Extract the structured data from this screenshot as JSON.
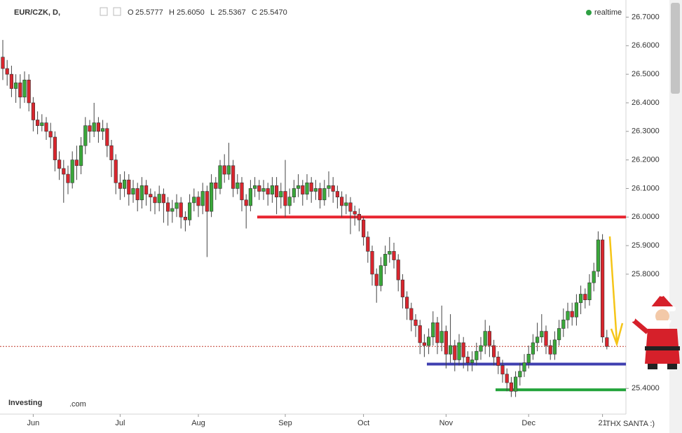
{
  "chart_data": {
    "type": "candlestick",
    "symbol": "EUR/CZK, D,",
    "ohlc_header": [
      {
        "label": "O",
        "value": "25.5777"
      },
      {
        "label": "H",
        "value": "25.6050"
      },
      {
        "label": "L",
        "value": "25.5367"
      },
      {
        "label": "C",
        "value": "25.5470"
      }
    ],
    "status": "realtime",
    "brand": "Investing",
    "brand_suffix": ".com",
    "annotation": "THX SANTA :)",
    "categories": [
      null,
      null,
      null,
      null,
      null,
      null,
      null,
      "Jun",
      null,
      null,
      null,
      null,
      null,
      null,
      null,
      null,
      null,
      null,
      null,
      null,
      null,
      null,
      null,
      null,
      null,
      null,
      null,
      "Jul",
      null,
      null,
      null,
      null,
      null,
      null,
      null,
      null,
      null,
      null,
      null,
      null,
      null,
      null,
      null,
      null,
      null,
      "Aug",
      null,
      null,
      null,
      null,
      null,
      null,
      null,
      null,
      null,
      null,
      null,
      null,
      null,
      null,
      null,
      null,
      null,
      null,
      null,
      "Sep",
      null,
      null,
      null,
      null,
      null,
      null,
      null,
      null,
      null,
      null,
      null,
      null,
      null,
      null,
      null,
      null,
      null,
      "Oct",
      null,
      null,
      null,
      null,
      null,
      null,
      null,
      null,
      null,
      null,
      null,
      null,
      null,
      null,
      null,
      null,
      null,
      null,
      "Nov",
      null,
      null,
      null,
      null,
      null,
      null,
      null,
      null,
      null,
      null,
      null,
      null,
      null,
      null,
      null,
      null,
      null,
      null,
      "Dec",
      null,
      null,
      null,
      null,
      null,
      null,
      null,
      null,
      null,
      null,
      null,
      null,
      null,
      null,
      null,
      null,
      "21",
      null
    ],
    "open": [
      26.56,
      26.52,
      26.5,
      26.45,
      26.47,
      26.42,
      26.48,
      26.4,
      26.34,
      26.32,
      26.33,
      26.3,
      26.28,
      26.2,
      26.17,
      26.15,
      26.12,
      26.2,
      26.18,
      26.25,
      26.32,
      26.3,
      26.33,
      26.3,
      26.31,
      26.25,
      26.2,
      26.12,
      26.1,
      26.13,
      26.08,
      26.1,
      26.06,
      26.11,
      26.08,
      26.07,
      26.05,
      26.08,
      26.05,
      26.02,
      26.03,
      26.05,
      26.0,
      25.99,
      26.05,
      26.07,
      26.04,
      26.09,
      26.02,
      26.12,
      26.1,
      26.18,
      26.15,
      26.18,
      26.1,
      26.12,
      26.06,
      26.04,
      26.1,
      26.11,
      26.09,
      26.1,
      26.08,
      26.11,
      26.07,
      26.09,
      26.04,
      26.07,
      26.1,
      26.11,
      26.08,
      26.12,
      26.09,
      26.1,
      26.06,
      26.1,
      26.11,
      26.09,
      26.07,
      26.04,
      26.05,
      26.02,
      26.01,
      25.99,
      25.93,
      25.88,
      25.8,
      25.76,
      25.83,
      25.87,
      25.88,
      25.85,
      25.78,
      25.72,
      25.68,
      25.64,
      25.62,
      25.56,
      25.55,
      25.58,
      25.63,
      25.56,
      25.6,
      25.52,
      25.55,
      25.5,
      25.56,
      25.51,
      25.49,
      25.5,
      25.53,
      25.55,
      25.6,
      25.55,
      25.51,
      25.48,
      25.45,
      25.42,
      25.39,
      25.44,
      25.46,
      25.49,
      25.52,
      25.56,
      25.58,
      25.6,
      25.55,
      25.52,
      25.57,
      25.61,
      25.64,
      25.67,
      25.65,
      25.7,
      25.73,
      25.71,
      25.77,
      25.81,
      25.92,
      25.5777
    ],
    "high": [
      26.62,
      26.55,
      26.53,
      26.5,
      26.5,
      26.51,
      26.5,
      26.42,
      26.37,
      26.36,
      26.35,
      26.33,
      26.3,
      26.23,
      26.2,
      26.18,
      26.23,
      26.25,
      26.28,
      26.35,
      26.34,
      26.4,
      26.35,
      26.34,
      26.33,
      26.27,
      26.22,
      26.15,
      26.16,
      26.15,
      26.13,
      26.12,
      26.14,
      26.13,
      26.1,
      26.09,
      26.11,
      26.1,
      26.07,
      26.06,
      26.08,
      26.07,
      26.02,
      26.08,
      26.1,
      26.09,
      26.12,
      26.11,
      26.15,
      26.14,
      26.2,
      26.22,
      26.26,
      26.2,
      26.15,
      26.14,
      26.08,
      26.13,
      26.14,
      26.13,
      26.13,
      26.12,
      26.14,
      26.14,
      26.12,
      26.2,
      26.1,
      26.13,
      26.15,
      26.13,
      26.15,
      26.14,
      26.13,
      26.12,
      26.13,
      26.16,
      26.14,
      26.11,
      26.09,
      26.08,
      26.07,
      26.04,
      26.03,
      26.0,
      25.95,
      25.9,
      25.82,
      25.86,
      25.9,
      25.93,
      25.91,
      25.87,
      25.8,
      25.74,
      25.7,
      25.66,
      25.64,
      25.59,
      25.61,
      25.67,
      25.65,
      25.69,
      25.62,
      25.66,
      25.57,
      25.59,
      25.58,
      25.53,
      25.53,
      25.56,
      25.58,
      25.64,
      25.62,
      25.57,
      25.53,
      25.5,
      25.47,
      25.44,
      25.46,
      25.49,
      25.52,
      25.55,
      25.59,
      25.63,
      25.66,
      25.62,
      25.57,
      25.6,
      25.64,
      25.68,
      25.7,
      25.7,
      25.73,
      25.76,
      25.75,
      25.8,
      25.84,
      25.95,
      25.94,
      25.605
    ],
    "low": [
      26.48,
      26.46,
      26.42,
      26.4,
      26.38,
      26.4,
      26.37,
      26.3,
      26.29,
      26.3,
      26.27,
      26.24,
      26.16,
      26.13,
      26.05,
      26.08,
      26.1,
      26.13,
      26.15,
      26.22,
      26.26,
      26.28,
      26.26,
      26.27,
      26.21,
      26.14,
      26.08,
      26.06,
      26.07,
      26.04,
      26.05,
      26.02,
      26.03,
      26.04,
      26.02,
      26.01,
      26.02,
      25.98,
      25.97,
      25.98,
      26.0,
      25.96,
      25.95,
      25.97,
      26.02,
      26.0,
      26.01,
      25.86,
      26.0,
      26.06,
      26.08,
      26.12,
      26.13,
      26.07,
      26.08,
      26.02,
      25.96,
      26.02,
      26.07,
      26.06,
      26.06,
      26.04,
      26.05,
      26.01,
      26.03,
      26.0,
      26.01,
      26.05,
      26.07,
      26.04,
      26.06,
      26.05,
      26.06,
      26.03,
      26.04,
      26.07,
      26.05,
      26.03,
      26.0,
      26.01,
      25.94,
      25.97,
      25.95,
      25.9,
      25.84,
      25.76,
      25.7,
      25.74,
      25.8,
      25.84,
      25.82,
      25.74,
      25.68,
      25.64,
      25.6,
      25.58,
      25.52,
      25.51,
      25.52,
      25.55,
      25.52,
      25.53,
      25.47,
      25.49,
      25.46,
      25.48,
      25.47,
      25.46,
      25.46,
      25.48,
      25.5,
      25.52,
      25.51,
      25.48,
      25.45,
      25.42,
      25.39,
      25.37,
      25.37,
      25.41,
      25.44,
      25.47,
      25.5,
      25.53,
      25.56,
      25.52,
      25.5,
      25.5,
      25.55,
      25.58,
      25.61,
      25.62,
      25.62,
      25.66,
      25.68,
      25.69,
      25.74,
      25.79,
      25.56,
      25.5367
    ],
    "close": [
      26.52,
      26.5,
      26.45,
      26.47,
      26.42,
      26.48,
      26.4,
      26.34,
      26.32,
      26.33,
      26.3,
      26.28,
      26.2,
      26.17,
      26.15,
      26.12,
      26.2,
      26.18,
      26.25,
      26.32,
      26.3,
      26.33,
      26.3,
      26.31,
      26.25,
      26.2,
      26.12,
      26.1,
      26.13,
      26.08,
      26.1,
      26.06,
      26.11,
      26.08,
      26.07,
      26.05,
      26.08,
      26.05,
      26.02,
      26.03,
      26.05,
      26.0,
      25.99,
      26.05,
      26.07,
      26.04,
      26.09,
      26.02,
      26.12,
      26.1,
      26.18,
      26.15,
      26.18,
      26.1,
      26.12,
      26.06,
      26.04,
      26.1,
      26.11,
      26.09,
      26.1,
      26.08,
      26.11,
      26.07,
      26.09,
      26.04,
      26.07,
      26.1,
      26.11,
      26.08,
      26.12,
      26.09,
      26.1,
      26.06,
      26.1,
      26.11,
      26.09,
      26.07,
      26.04,
      26.05,
      26.02,
      26.01,
      25.99,
      25.93,
      25.88,
      25.8,
      25.76,
      25.83,
      25.87,
      25.88,
      25.85,
      25.78,
      25.72,
      25.68,
      25.64,
      25.62,
      25.56,
      25.55,
      25.58,
      25.63,
      25.56,
      25.6,
      25.52,
      25.55,
      25.5,
      25.56,
      25.51,
      25.49,
      25.5,
      25.53,
      25.55,
      25.6,
      25.55,
      25.51,
      25.48,
      25.45,
      25.42,
      25.39,
      25.44,
      25.46,
      25.49,
      25.52,
      25.56,
      25.58,
      25.6,
      25.55,
      25.52,
      25.57,
      25.61,
      25.64,
      25.67,
      25.65,
      25.7,
      25.73,
      25.71,
      25.77,
      25.81,
      25.92,
      25.58,
      25.547
    ],
    "up_color": "#3aa83a",
    "down_color": "#d9262e",
    "levels": [
      {
        "value": 26.0,
        "color": "#e8242f"
      },
      {
        "value": 25.485,
        "color": "#3f3fb0"
      },
      {
        "value": 25.395,
        "color": "#22a33a"
      }
    ],
    "last_price_color": "#c0392b",
    "ylim": [
      25.31,
      26.76
    ],
    "yticks": [
      {
        "value": 25.4,
        "label": "25.4000"
      },
      {
        "value": 25.8,
        "label": "25.8000"
      },
      {
        "value": 25.9,
        "label": "25.9000"
      },
      {
        "value": 26.0,
        "label": "26.0000"
      },
      {
        "value": 26.1,
        "label": "26.1000"
      },
      {
        "value": 26.2,
        "label": "26.2000"
      },
      {
        "value": 26.3,
        "label": "26.3000"
      },
      {
        "value": 26.4,
        "label": "26.4000"
      },
      {
        "value": 26.5,
        "label": "26.5000"
      },
      {
        "value": 26.6,
        "label": "26.6000"
      },
      {
        "value": 26.7,
        "label": "26.7000"
      }
    ]
  }
}
